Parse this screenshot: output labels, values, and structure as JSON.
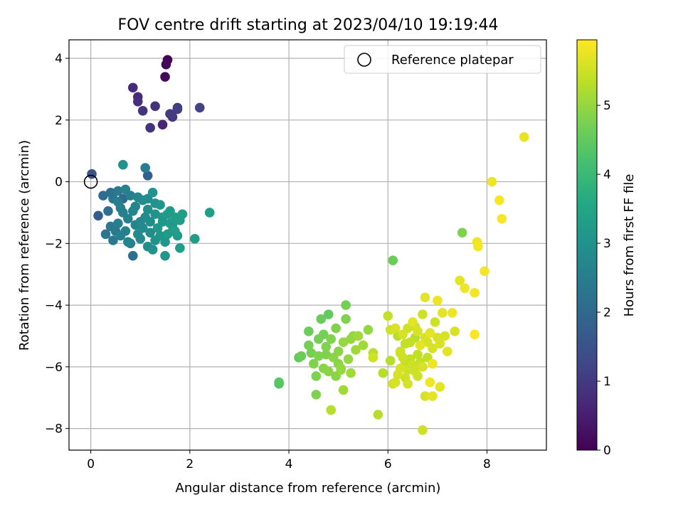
{
  "chart_data": {
    "type": "scatter",
    "title": "FOV centre drift starting at 2023/04/10 19:19:44",
    "xlabel": "Angular distance from reference (arcmin)",
    "ylabel": "Rotation from reference (arcmin)",
    "xlim": [
      -0.44,
      9.2
    ],
    "ylim": [
      -8.7,
      4.6
    ],
    "xticks": [
      0,
      2,
      4,
      6,
      8
    ],
    "yticks": [
      -8,
      -6,
      -4,
      -2,
      0,
      2,
      4
    ],
    "grid": true,
    "legend": {
      "location": "top-right",
      "entries": [
        "Reference platepar"
      ]
    },
    "reference_point": {
      "x": 0,
      "y": 0,
      "label": "Reference platepar"
    },
    "colorbar": {
      "label": "Hours from first FF file",
      "range": [
        0,
        5.95
      ],
      "ticks": [
        0,
        1,
        2,
        3,
        4,
        5
      ],
      "colormap": "viridis"
    },
    "points": [
      [
        1.55,
        3.95,
        0.05
      ],
      [
        1.52,
        3.8,
        0.1
      ],
      [
        1.5,
        3.4,
        0.15
      ],
      [
        0.85,
        3.05,
        0.7
      ],
      [
        0.95,
        2.75,
        0.75
      ],
      [
        0.95,
        2.6,
        0.8
      ],
      [
        1.05,
        2.3,
        0.9
      ],
      [
        1.3,
        2.45,
        0.85
      ],
      [
        1.45,
        1.85,
        0.6
      ],
      [
        1.2,
        1.75,
        0.9
      ],
      [
        1.6,
        2.2,
        1.05
      ],
      [
        1.65,
        2.1,
        1.0
      ],
      [
        1.75,
        2.35,
        1.1
      ],
      [
        1.75,
        2.4,
        1.0
      ],
      [
        2.2,
        2.4,
        1.2
      ],
      [
        0.02,
        0.25,
        1.55
      ],
      [
        0.15,
        -1.1,
        1.75
      ],
      [
        1.15,
        0.2,
        1.8
      ],
      [
        1.1,
        0.45,
        2.5
      ],
      [
        0.65,
        0.55,
        3.0
      ],
      [
        0.25,
        -0.45,
        2.1
      ],
      [
        0.35,
        -0.95,
        2.2
      ],
      [
        0.4,
        -0.35,
        2.2
      ],
      [
        0.45,
        -0.55,
        2.3
      ],
      [
        0.5,
        -1.6,
        2.4
      ],
      [
        0.55,
        -0.3,
        2.4
      ],
      [
        0.6,
        -0.85,
        2.5
      ],
      [
        0.65,
        -0.55,
        2.0
      ],
      [
        0.7,
        -0.25,
        2.6
      ],
      [
        0.75,
        -1.2,
        2.6
      ],
      [
        0.8,
        -0.45,
        2.5
      ],
      [
        0.85,
        -0.95,
        2.7
      ],
      [
        0.9,
        -1.4,
        2.7
      ],
      [
        0.95,
        -0.5,
        2.7
      ],
      [
        1.0,
        -1.85,
        2.8
      ],
      [
        1.05,
        -0.6,
        2.8
      ],
      [
        1.1,
        -1.15,
        2.8
      ],
      [
        1.15,
        -0.9,
        2.9
      ],
      [
        1.2,
        -1.65,
        2.9
      ],
      [
        1.25,
        -0.35,
        3.0
      ],
      [
        1.3,
        -1.05,
        3.0
      ],
      [
        1.35,
        -1.5,
        3.1
      ],
      [
        1.4,
        -0.75,
        3.1
      ],
      [
        1.45,
        -1.3,
        3.1
      ],
      [
        1.5,
        -1.95,
        3.1
      ],
      [
        1.55,
        -1.05,
        3.2
      ],
      [
        1.6,
        -0.95,
        3.2
      ],
      [
        1.65,
        -1.4,
        3.2
      ],
      [
        1.7,
        -1.15,
        3.3
      ],
      [
        1.75,
        -1.75,
        3.2
      ],
      [
        1.8,
        -1.25,
        3.3
      ],
      [
        1.85,
        -1.05,
        3.3
      ],
      [
        0.3,
        -1.7,
        2.3
      ],
      [
        0.4,
        -1.45,
        2.4
      ],
      [
        0.45,
        -1.9,
        2.4
      ],
      [
        0.55,
        -1.35,
        2.5
      ],
      [
        0.6,
        -1.75,
        2.6
      ],
      [
        0.7,
        -1.6,
        2.6
      ],
      [
        0.75,
        -1.95,
        2.7
      ],
      [
        0.8,
        -2.0,
        2.5
      ],
      [
        0.85,
        -2.4,
        2.2
      ],
      [
        0.95,
        -1.7,
        2.8
      ],
      [
        1.05,
        -1.5,
        2.8
      ],
      [
        1.15,
        -2.1,
        2.9
      ],
      [
        1.25,
        -2.2,
        3.0
      ],
      [
        1.3,
        -1.9,
        3.0
      ],
      [
        1.4,
        -1.75,
        3.1
      ],
      [
        1.5,
        -2.4,
        3.1
      ],
      [
        1.55,
        -1.7,
        3.2
      ],
      [
        1.65,
        -1.6,
        3.2
      ],
      [
        1.8,
        -2.15,
        3.3
      ],
      [
        2.1,
        -1.85,
        3.3
      ],
      [
        2.4,
        -1.0,
        3.3
      ],
      [
        0.55,
        -0.65,
        2.5
      ],
      [
        0.65,
        -1.0,
        2.6
      ],
      [
        0.9,
        -0.8,
        2.7
      ],
      [
        1.0,
        -1.3,
        2.8
      ],
      [
        1.2,
        -1.3,
        2.9
      ],
      [
        1.3,
        -0.7,
        3.0
      ],
      [
        1.45,
        -1.15,
        3.1
      ],
      [
        1.6,
        -1.35,
        3.2
      ],
      [
        1.7,
        -1.6,
        3.3
      ],
      [
        1.15,
        -0.55,
        2.9
      ],
      [
        3.8,
        -6.55,
        4.3
      ],
      [
        3.8,
        -6.5,
        4.4
      ],
      [
        4.2,
        -5.7,
        4.5
      ],
      [
        4.25,
        -5.65,
        4.6
      ],
      [
        4.4,
        -4.85,
        4.6
      ],
      [
        4.4,
        -5.3,
        4.7
      ],
      [
        4.45,
        -5.55,
        4.7
      ],
      [
        4.5,
        -5.9,
        4.8
      ],
      [
        4.55,
        -6.3,
        4.8
      ],
      [
        4.55,
        -6.9,
        4.8
      ],
      [
        4.6,
        -5.1,
        4.7
      ],
      [
        4.65,
        -4.45,
        4.6
      ],
      [
        4.7,
        -4.95,
        4.7
      ],
      [
        4.75,
        -5.35,
        4.8
      ],
      [
        4.75,
        -5.6,
        4.8
      ],
      [
        4.8,
        -4.3,
        4.5
      ],
      [
        4.8,
        -6.15,
        4.9
      ],
      [
        4.85,
        -5.1,
        4.8
      ],
      [
        4.9,
        -5.7,
        4.9
      ],
      [
        4.95,
        -4.75,
        4.8
      ],
      [
        4.95,
        -6.3,
        4.9
      ],
      [
        5.0,
        -5.5,
        4.9
      ],
      [
        5.05,
        -6.05,
        5.0
      ],
      [
        5.1,
        -5.2,
        5.0
      ],
      [
        5.1,
        -6.75,
        5.1
      ],
      [
        5.15,
        -4.0,
        4.7
      ],
      [
        5.15,
        -4.45,
        4.8
      ],
      [
        5.2,
        -5.75,
        5.0
      ],
      [
        5.25,
        -6.2,
        5.1
      ],
      [
        5.3,
        -5.0,
        5.0
      ],
      [
        5.35,
        -5.45,
        5.1
      ],
      [
        5.4,
        -5.0,
        5.1
      ],
      [
        5.5,
        -5.3,
        5.1
      ],
      [
        5.6,
        -4.8,
        5.0
      ],
      [
        4.85,
        -7.4,
        5.3
      ],
      [
        5.05,
        -6.1,
        5.0
      ],
      [
        4.6,
        -5.65,
        4.8
      ],
      [
        5.0,
        -5.9,
        4.9
      ],
      [
        4.7,
        -6.05,
        4.9
      ],
      [
        5.25,
        -5.1,
        5.0
      ],
      [
        5.7,
        -5.7,
        5.5
      ],
      [
        5.7,
        -5.55,
        5.3
      ],
      [
        5.8,
        -7.55,
        5.3
      ],
      [
        5.9,
        -6.2,
        5.3
      ],
      [
        6.0,
        -4.35,
        5.4
      ],
      [
        6.05,
        -5.8,
        5.3
      ],
      [
        6.1,
        -2.55,
        4.6
      ],
      [
        6.1,
        -6.55,
        5.5
      ],
      [
        6.15,
        -4.75,
        5.6
      ],
      [
        6.2,
        -5.0,
        5.3
      ],
      [
        6.25,
        -5.5,
        5.5
      ],
      [
        6.25,
        -6.05,
        5.6
      ],
      [
        6.3,
        -4.95,
        5.6
      ],
      [
        6.35,
        -5.25,
        5.4
      ],
      [
        6.35,
        -6.35,
        5.5
      ],
      [
        6.4,
        -6.55,
        5.6
      ],
      [
        6.4,
        -4.75,
        5.5
      ],
      [
        6.45,
        -5.75,
        5.4
      ],
      [
        6.5,
        -4.55,
        5.7
      ],
      [
        6.5,
        -5.95,
        5.5
      ],
      [
        6.55,
        -5.05,
        5.3
      ],
      [
        6.55,
        -6.15,
        5.5
      ],
      [
        6.6,
        -4.85,
        5.6
      ],
      [
        6.6,
        -5.6,
        5.4
      ],
      [
        6.65,
        -5.3,
        5.7
      ],
      [
        6.7,
        -4.3,
        5.5
      ],
      [
        6.7,
        -6.0,
        5.6
      ],
      [
        6.7,
        -8.05,
        5.5
      ],
      [
        6.75,
        -3.75,
        5.7
      ],
      [
        6.75,
        -6.95,
        5.6
      ],
      [
        6.8,
        -5.7,
        5.4
      ],
      [
        6.85,
        -4.9,
        5.7
      ],
      [
        6.85,
        -6.5,
        5.8
      ],
      [
        6.9,
        -5.4,
        5.6
      ],
      [
        6.95,
        -4.55,
        5.5
      ],
      [
        7.0,
        -5.05,
        5.6
      ],
      [
        7.0,
        -3.85,
        5.8
      ],
      [
        7.05,
        -6.65,
        5.7
      ],
      [
        7.05,
        -5.25,
        5.6
      ],
      [
        7.1,
        -4.25,
        5.7
      ],
      [
        7.15,
        -5.0,
        5.6
      ],
      [
        7.2,
        -5.5,
        5.7
      ],
      [
        7.3,
        -4.25,
        5.8
      ],
      [
        7.35,
        -4.85,
        5.6
      ],
      [
        6.25,
        -5.55,
        5.3
      ],
      [
        6.15,
        -6.5,
        5.6
      ],
      [
        6.35,
        -5.85,
        5.4
      ],
      [
        6.45,
        -5.2,
        5.4
      ],
      [
        6.55,
        -4.7,
        5.5
      ],
      [
        6.6,
        -6.3,
        5.5
      ],
      [
        6.8,
        -5.2,
        5.6
      ],
      [
        6.9,
        -5.9,
        5.8
      ],
      [
        6.3,
        -5.7,
        5.5
      ],
      [
        6.65,
        -5.85,
        5.4
      ],
      [
        6.05,
        -4.8,
        5.5
      ],
      [
        6.4,
        -6.1,
        5.5
      ],
      [
        6.2,
        -6.25,
        5.6
      ],
      [
        6.75,
        -5.05,
        5.6
      ],
      [
        6.9,
        -6.95,
        5.7
      ],
      [
        7.45,
        -3.2,
        5.7
      ],
      [
        7.5,
        -1.65,
        4.8
      ],
      [
        7.55,
        -3.45,
        5.8
      ],
      [
        7.75,
        -3.6,
        5.85
      ],
      [
        7.75,
        -4.95,
        5.9
      ],
      [
        7.8,
        -1.95,
        5.8
      ],
      [
        7.82,
        -2.1,
        5.85
      ],
      [
        7.95,
        -2.9,
        5.85
      ],
      [
        8.1,
        0.0,
        5.8
      ],
      [
        8.25,
        -0.6,
        5.9
      ],
      [
        8.3,
        -1.2,
        5.9
      ],
      [
        8.75,
        1.45,
        5.75
      ]
    ]
  }
}
